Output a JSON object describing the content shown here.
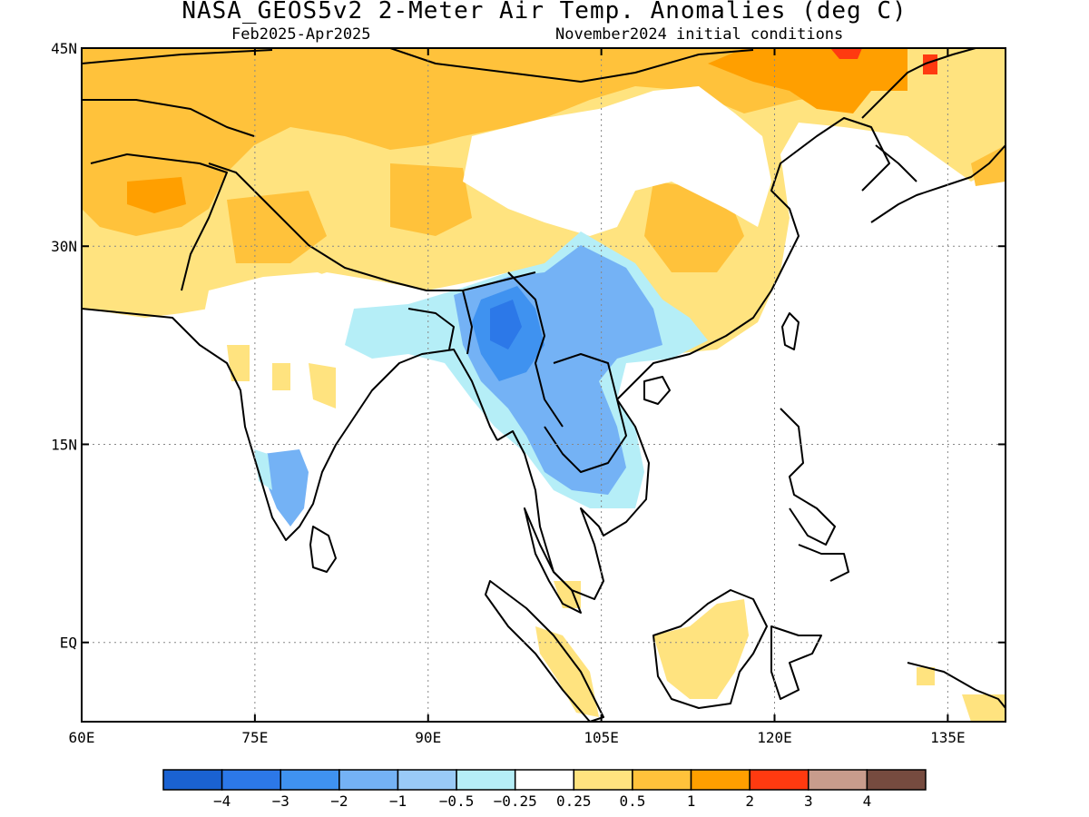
{
  "title": "NASA_GEOS5v2 2-Meter Air Temp. Anomalies (deg C)",
  "subtitle_left": "Feb2025-Apr2025",
  "subtitle_right": "November2024 initial conditions",
  "map": {
    "lon_range": [
      60,
      140
    ],
    "lat_range": [
      -6,
      45
    ],
    "lon_ticks": [
      {
        "value": 60,
        "label": "60E"
      },
      {
        "value": 75,
        "label": "75E"
      },
      {
        "value": 90,
        "label": "90E"
      },
      {
        "value": 105,
        "label": "105E"
      },
      {
        "value": 120,
        "label": "120E"
      },
      {
        "value": 135,
        "label": "135E"
      }
    ],
    "lat_ticks": [
      {
        "value": 45,
        "label": "45N"
      },
      {
        "value": 30,
        "label": "30N"
      },
      {
        "value": 15,
        "label": "15N"
      },
      {
        "value": 0,
        "label": "EQ"
      }
    ],
    "grid": "dotted"
  },
  "colorbar": {
    "colors": [
      "#1a62d2",
      "#2c78e8",
      "#3f92f0",
      "#74b2f5",
      "#99caf7",
      "#b5eef7",
      "#ffffff",
      "#ffe37f",
      "#ffc23b",
      "#ff9f00",
      "#ff3a10",
      "#c89c8c",
      "#764b3f"
    ],
    "labels": [
      "−4",
      "−3",
      "−2",
      "−1",
      "−0.5",
      "−0.25",
      "0.25",
      "0.5",
      "1",
      "2",
      "3",
      "4"
    ]
  },
  "anomaly_regions": [
    {
      "level": 1,
      "color": "#ffc23b",
      "region": "Northern China / Mongolia"
    },
    {
      "level": 2,
      "color": "#ff9f00",
      "region": "Northeast China"
    },
    {
      "level": 1,
      "color": "#ffc23b",
      "region": "Afghanistan / Pakistan"
    },
    {
      "level": 0.5,
      "color": "#ffe37f",
      "region": "Tibetan Plateau / northern India"
    },
    {
      "level": 1,
      "color": "#ffc23b",
      "region": "Central China"
    },
    {
      "level": -1,
      "color": "#74b2f5",
      "region": "Southwest China"
    },
    {
      "level": -2,
      "color": "#3f92f0",
      "region": "Myanmar"
    },
    {
      "level": -1,
      "color": "#74b2f5",
      "region": "Thailand / Laos / Cambodia"
    },
    {
      "level": -1,
      "color": "#74b2f5",
      "region": "Southern India"
    },
    {
      "level": 0.5,
      "color": "#ffe37f",
      "region": "Borneo"
    },
    {
      "level": 0.5,
      "color": "#ffe37f",
      "region": "Sumatra"
    }
  ]
}
